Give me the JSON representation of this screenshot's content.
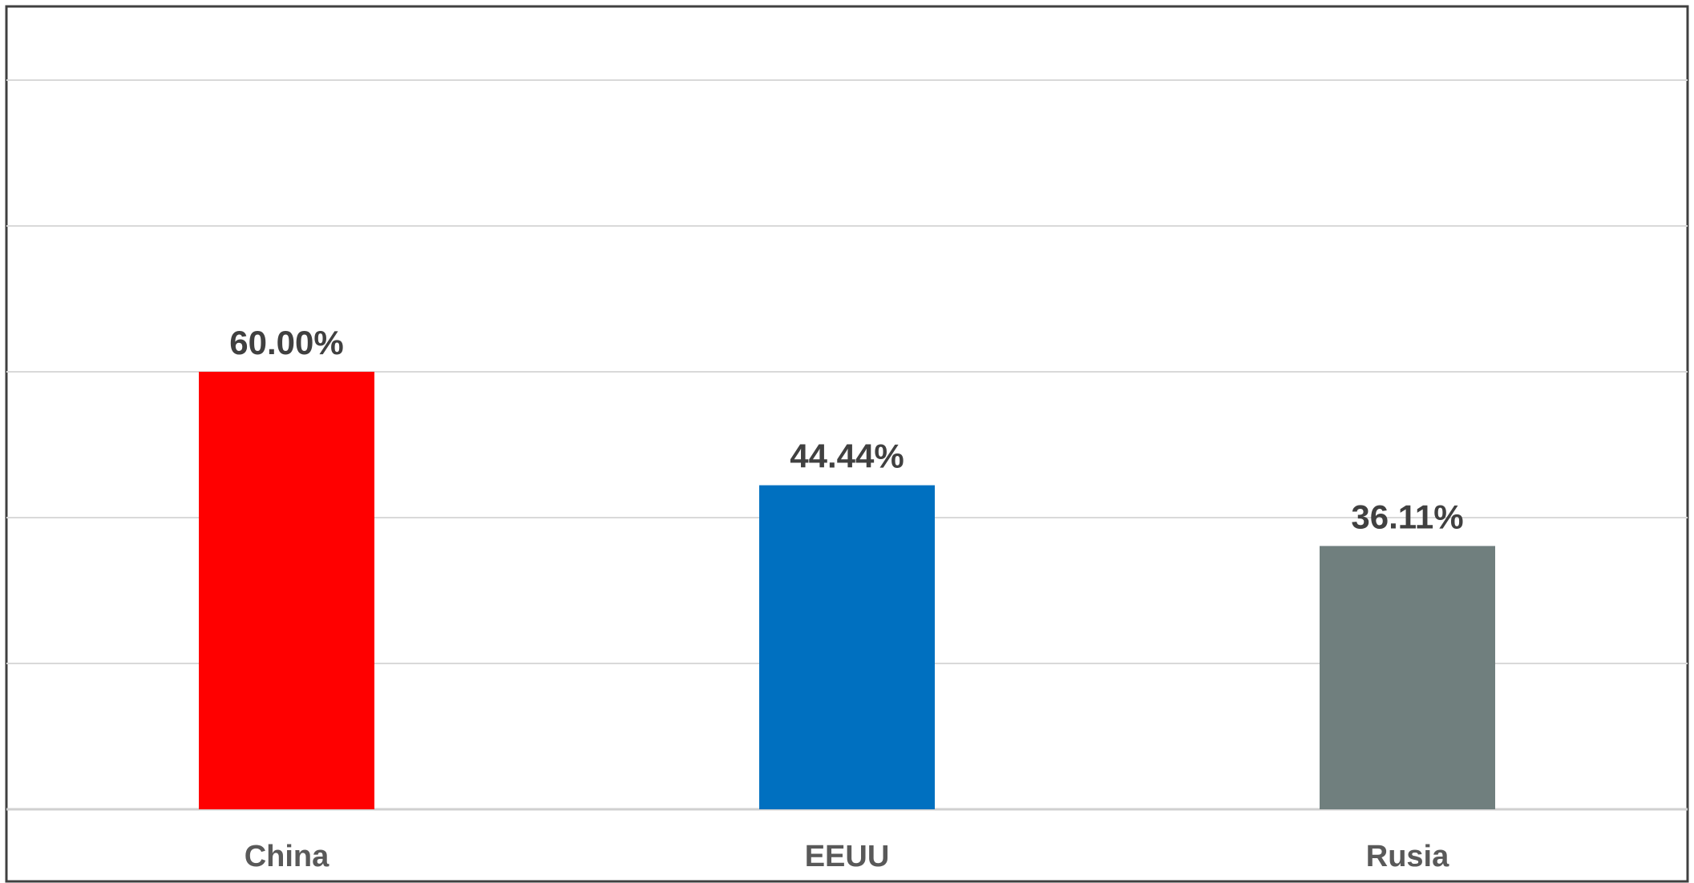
{
  "chart_data": {
    "type": "bar",
    "categories": [
      "China",
      "EEUU",
      "Rusia"
    ],
    "values": [
      60.0,
      44.44,
      36.11
    ],
    "value_labels": [
      "60.00%",
      "44.44%",
      "36.11%"
    ],
    "colors": [
      "#FF0000",
      "#0070C0",
      "#707F7E"
    ],
    "ylim": [
      0,
      110
    ],
    "grid": true,
    "axis_tick_labels_shown": false
  }
}
